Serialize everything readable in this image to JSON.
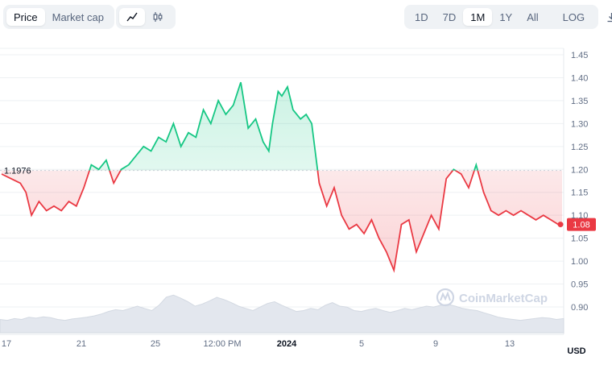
{
  "toolbar": {
    "metric_tabs": [
      "Price",
      "Market cap"
    ],
    "active_metric": "Price",
    "chart_style_icons": [
      "line-chart-icon",
      "candlestick-icon"
    ],
    "ranges": [
      "1D",
      "7D",
      "1M",
      "1Y",
      "All"
    ],
    "active_range": "1M",
    "log_label": "LOG",
    "download_icon": "download-icon"
  },
  "reference_price_label": "1.1976",
  "current_price_label": "1.08",
  "currency_label": "USD",
  "watermark": "CoinMarketCap",
  "colors": {
    "up": "#16c784",
    "down": "#ea3943",
    "badge": "#ea3943",
    "grid": "#eef0f3"
  },
  "chart_data": {
    "type": "line",
    "title": "",
    "reference_value": 1.1976,
    "y_ticks": [
      "1.45",
      "1.40",
      "1.35",
      "1.30",
      "1.25",
      "1.20",
      "1.15",
      "1.10",
      "1.05",
      "1.00",
      "0.95",
      "0.90"
    ],
    "ylim": [
      0.85,
      1.465
    ],
    "x_tick_labels": [
      "17",
      "21",
      "25",
      "12:00 PM",
      "2024",
      "5",
      "9",
      "13"
    ],
    "series": [
      {
        "x": [
          0,
          0.5,
          1,
          1.3,
          1.6,
          2,
          2.4,
          2.8,
          3.2,
          3.6,
          4,
          4.4,
          4.8,
          5.2,
          5.6,
          6,
          6.4,
          6.8,
          7.2,
          7.6,
          8,
          8.4,
          8.8,
          9.2,
          9.6,
          10,
          10.4,
          10.8,
          11.2,
          11.6,
          12,
          12.4,
          12.8,
          13.2,
          13.6,
          14,
          14.3,
          14.5,
          14.8,
          15,
          15.3,
          15.6,
          16,
          16.3,
          16.6,
          17,
          17.4,
          17.8,
          18.2,
          18.6,
          19,
          19.4,
          19.8,
          20.2,
          20.6,
          21,
          21.4,
          21.8,
          22.2,
          22.6,
          23,
          23.4,
          23.8,
          24.2,
          24.6,
          25,
          25.4,
          25.8,
          26.2,
          26.6,
          27,
          27.4,
          27.8,
          28.2,
          28.6,
          29,
          29.4,
          29.8,
          30
        ],
        "y": [
          1.19,
          1.18,
          1.17,
          1.15,
          1.1,
          1.13,
          1.11,
          1.12,
          1.11,
          1.13,
          1.12,
          1.16,
          1.21,
          1.2,
          1.22,
          1.17,
          1.2,
          1.21,
          1.23,
          1.25,
          1.24,
          1.27,
          1.26,
          1.3,
          1.25,
          1.28,
          1.27,
          1.33,
          1.3,
          1.35,
          1.32,
          1.34,
          1.39,
          1.29,
          1.31,
          1.26,
          1.24,
          1.3,
          1.37,
          1.36,
          1.38,
          1.33,
          1.31,
          1.32,
          1.3,
          1.17,
          1.12,
          1.16,
          1.1,
          1.07,
          1.08,
          1.06,
          1.09,
          1.05,
          1.02,
          0.98,
          1.08,
          1.09,
          1.02,
          1.06,
          1.1,
          1.07,
          1.18,
          1.2,
          1.19,
          1.16,
          1.21,
          1.15,
          1.11,
          1.1,
          1.11,
          1.1,
          1.11,
          1.1,
          1.09,
          1.1,
          1.09,
          1.08,
          1.08
        ]
      }
    ],
    "volume": [
      0.3,
      0.28,
      0.32,
      0.3,
      0.35,
      0.33,
      0.36,
      0.34,
      0.3,
      0.28,
      0.31,
      0.33,
      0.35,
      0.38,
      0.42,
      0.48,
      0.52,
      0.5,
      0.55,
      0.6,
      0.55,
      0.5,
      0.62,
      0.8,
      0.85,
      0.78,
      0.7,
      0.6,
      0.65,
      0.72,
      0.8,
      0.75,
      0.68,
      0.6,
      0.55,
      0.5,
      0.58,
      0.66,
      0.7,
      0.62,
      0.55,
      0.48,
      0.5,
      0.55,
      0.52,
      0.62,
      0.68,
      0.6,
      0.58,
      0.5,
      0.48,
      0.52,
      0.55,
      0.5,
      0.46,
      0.5,
      0.55,
      0.52,
      0.56,
      0.6,
      0.58,
      0.62,
      0.64,
      0.6,
      0.55,
      0.52,
      0.5,
      0.45,
      0.4,
      0.35,
      0.32,
      0.3,
      0.28,
      0.3,
      0.32,
      0.34,
      0.33,
      0.3,
      0.32
    ],
    "grid": true
  }
}
